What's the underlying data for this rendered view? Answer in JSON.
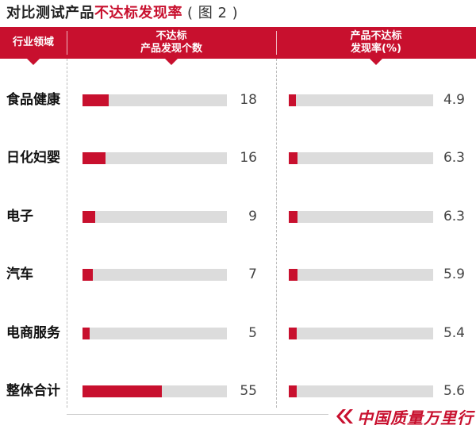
{
  "title": {
    "prefix": "对比测试产品",
    "highlight": "不达标发现率",
    "figure": "( 图 2 )"
  },
  "header": {
    "col1": "行业领域",
    "col2_line1": "不达标",
    "col2_line2": "产品发现个数",
    "col3_line1": "产品不达标",
    "col3_line2": "发现率(%)"
  },
  "logo_text": "中国质量万里行",
  "colors": {
    "accent": "#c8102e",
    "track": "#dcdcdc"
  },
  "chart_data": {
    "type": "bar",
    "orientation": "horizontal",
    "categories": [
      "食品健康",
      "日化妇婴",
      "电子",
      "汽车",
      "电商服务",
      "整体合计"
    ],
    "series": [
      {
        "name": "不达标产品发现个数",
        "values": [
          18,
          16,
          9,
          7,
          5,
          55
        ],
        "max": 100
      },
      {
        "name": "产品不达标发现率(%)",
        "values": [
          4.9,
          6.3,
          6.3,
          5.9,
          5.4,
          5.6
        ],
        "max": 100
      }
    ],
    "display_values": {
      "count": [
        "18",
        "16",
        "9",
        "7",
        "5",
        "55"
      ],
      "rate": [
        "4.9",
        "6.3",
        "6.3",
        "5.9",
        "5.4",
        "5.6"
      ]
    }
  }
}
